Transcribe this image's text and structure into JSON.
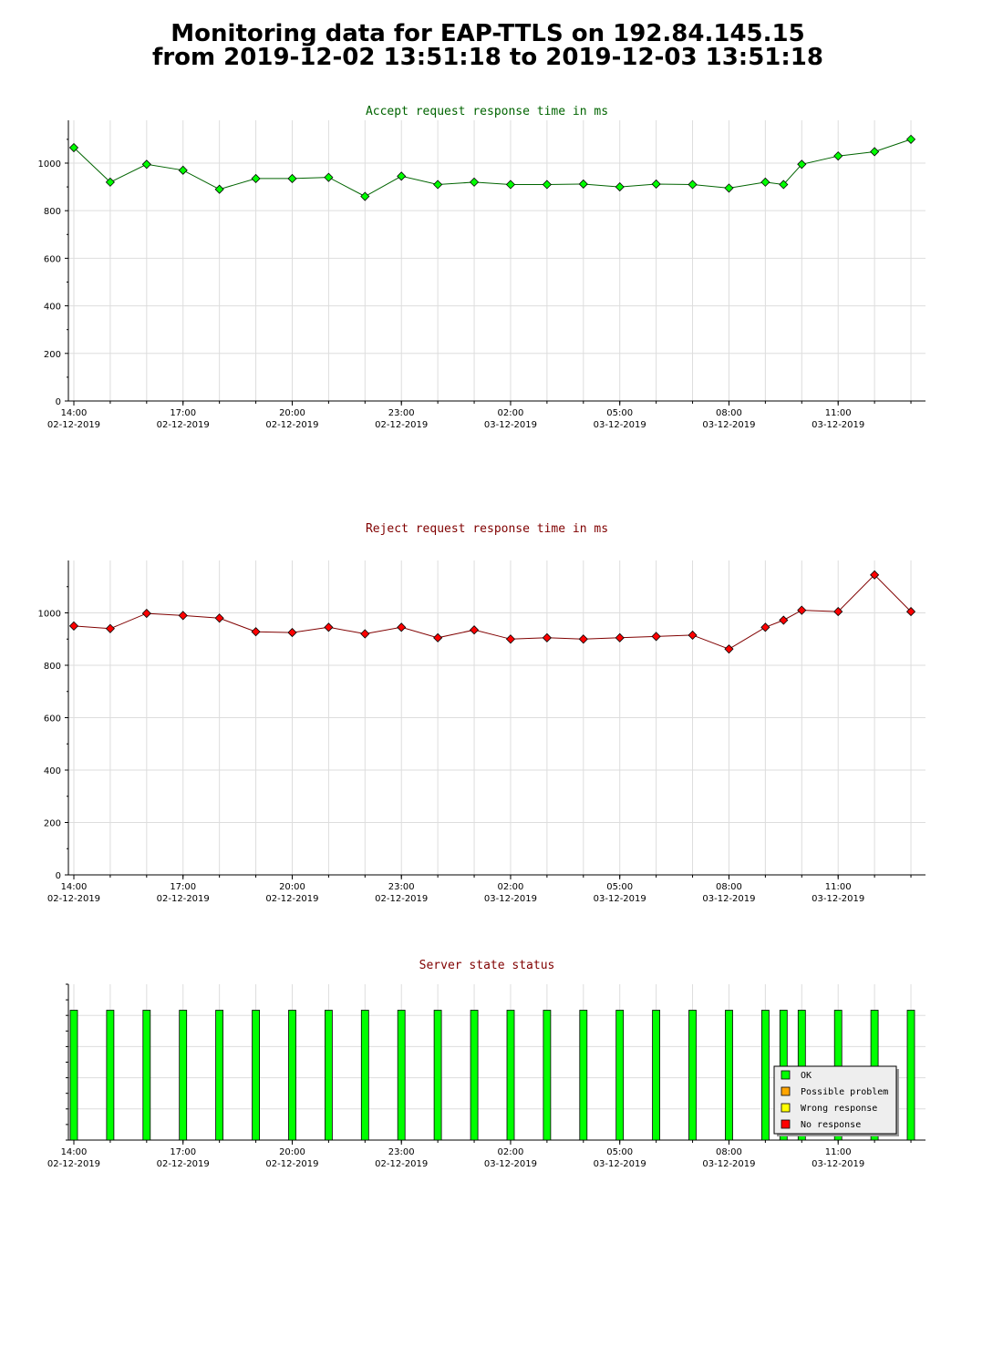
{
  "title": {
    "line1": "Monitoring data for EAP-TTLS on 192.84.145.15",
    "line2": "from 2019-12-02 13:51:18 to 2019-12-03 13:51:18"
  },
  "colors": {
    "accept_title": "#006400",
    "reject_title": "#800000",
    "status_title": "#800000",
    "ok": "#00ff00",
    "possible_problem": "#ffa500",
    "wrong_response": "#ffff00",
    "no_response": "#ff0000",
    "grid": "#dddddd"
  },
  "chart_data": [
    {
      "id": "accept",
      "type": "line",
      "title": "Accept request response time in ms",
      "ylim": [
        0,
        1180
      ],
      "yticks": [
        0,
        200,
        400,
        600,
        800,
        1000
      ],
      "xlim": [
        13.85,
        37.4
      ],
      "xticks": [
        {
          "time": "14:00",
          "date": "02-12-2019",
          "hour": 14
        },
        {
          "time": "17:00",
          "date": "02-12-2019",
          "hour": 17
        },
        {
          "time": "20:00",
          "date": "02-12-2019",
          "hour": 20
        },
        {
          "time": "23:00",
          "date": "02-12-2019",
          "hour": 23
        },
        {
          "time": "02:00",
          "date": "03-12-2019",
          "hour": 26
        },
        {
          "time": "05:00",
          "date": "03-12-2019",
          "hour": 29
        },
        {
          "time": "08:00",
          "date": "03-12-2019",
          "hour": 32
        },
        {
          "time": "11:00",
          "date": "03-12-2019",
          "hour": 35
        }
      ],
      "marker_color": "#00ff00",
      "line_color": "#006400",
      "grid": true,
      "x": [
        14.0,
        15.0,
        16.0,
        17.0,
        18.0,
        19.0,
        20.0,
        21.0,
        22.0,
        23.0,
        24.0,
        25.0,
        26.0,
        27.0,
        28.0,
        29.0,
        30.0,
        31.0,
        32.0,
        33.0,
        33.5,
        34.0,
        35.0,
        36.0,
        37.0
      ],
      "y": [
        1065,
        920,
        995,
        970,
        890,
        935,
        935,
        940,
        860,
        945,
        910,
        920,
        910,
        910,
        912,
        900,
        912,
        910,
        895,
        920,
        910,
        995,
        1030,
        1048,
        1100
      ]
    },
    {
      "id": "reject",
      "type": "line",
      "title": "Reject request response time in ms",
      "ylim": [
        0,
        1200
      ],
      "yticks": [
        0,
        200,
        400,
        600,
        800,
        1000
      ],
      "xlim": [
        13.85,
        37.4
      ],
      "xticks": [
        {
          "time": "14:00",
          "date": "02-12-2019",
          "hour": 14
        },
        {
          "time": "17:00",
          "date": "02-12-2019",
          "hour": 17
        },
        {
          "time": "20:00",
          "date": "02-12-2019",
          "hour": 20
        },
        {
          "time": "23:00",
          "date": "02-12-2019",
          "hour": 23
        },
        {
          "time": "02:00",
          "date": "03-12-2019",
          "hour": 26
        },
        {
          "time": "05:00",
          "date": "03-12-2019",
          "hour": 29
        },
        {
          "time": "08:00",
          "date": "03-12-2019",
          "hour": 32
        },
        {
          "time": "11:00",
          "date": "03-12-2019",
          "hour": 35
        }
      ],
      "marker_color": "#ff0000",
      "line_color": "#800000",
      "grid": true,
      "x": [
        14.0,
        15.0,
        16.0,
        17.0,
        18.0,
        19.0,
        20.0,
        21.0,
        22.0,
        23.0,
        24.0,
        25.0,
        26.0,
        27.0,
        28.0,
        29.0,
        30.0,
        31.0,
        32.0,
        33.0,
        33.5,
        34.0,
        35.0,
        36.0,
        37.0
      ],
      "y": [
        950,
        940,
        998,
        990,
        980,
        928,
        925,
        945,
        920,
        945,
        905,
        935,
        900,
        905,
        900,
        905,
        910,
        915,
        862,
        945,
        972,
        1010,
        1005,
        1145,
        1005
      ]
    },
    {
      "id": "status",
      "type": "bar",
      "title": "Server state status",
      "xlim": [
        13.85,
        37.4
      ],
      "xticks": [
        {
          "time": "14:00",
          "date": "02-12-2019",
          "hour": 14
        },
        {
          "time": "17:00",
          "date": "02-12-2019",
          "hour": 17
        },
        {
          "time": "20:00",
          "date": "02-12-2019",
          "hour": 20
        },
        {
          "time": "23:00",
          "date": "02-12-2019",
          "hour": 23
        },
        {
          "time": "02:00",
          "date": "03-12-2019",
          "hour": 26
        },
        {
          "time": "05:00",
          "date": "03-12-2019",
          "hour": 29
        },
        {
          "time": "08:00",
          "date": "03-12-2019",
          "hour": 32
        },
        {
          "time": "11:00",
          "date": "03-12-2019",
          "hour": 35
        }
      ],
      "x": [
        14.0,
        15.0,
        16.0,
        17.0,
        18.0,
        19.0,
        20.0,
        21.0,
        22.0,
        23.0,
        24.0,
        25.0,
        26.0,
        27.0,
        28.0,
        29.0,
        30.0,
        31.0,
        32.0,
        33.0,
        33.5,
        34.0,
        35.0,
        36.0,
        37.0
      ],
      "states": [
        "OK",
        "OK",
        "OK",
        "OK",
        "OK",
        "OK",
        "OK",
        "OK",
        "OK",
        "OK",
        "OK",
        "OK",
        "OK",
        "OK",
        "OK",
        "OK",
        "OK",
        "OK",
        "OK",
        "OK",
        "OK",
        "OK",
        "OK",
        "OK",
        "OK"
      ],
      "legend_position": "bottom-right",
      "legend": [
        {
          "label": "OK",
          "color": "#00ff00"
        },
        {
          "label": "Possible problem",
          "color": "#ffa500"
        },
        {
          "label": "Wrong response",
          "color": "#ffff00"
        },
        {
          "label": "No response",
          "color": "#ff0000"
        }
      ]
    }
  ]
}
